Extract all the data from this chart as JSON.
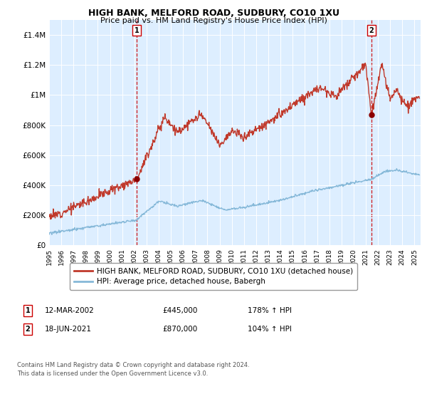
{
  "title1": "HIGH BANK, MELFORD ROAD, SUDBURY, CO10 1XU",
  "title2": "Price paid vs. HM Land Registry's House Price Index (HPI)",
  "xlim_start": 1995.0,
  "xlim_end": 2025.5,
  "ylim_min": 0,
  "ylim_max": 1500000,
  "yticks": [
    0,
    200000,
    400000,
    600000,
    800000,
    1000000,
    1200000,
    1400000
  ],
  "ytick_labels": [
    "£0",
    "£200K",
    "£400K",
    "£600K",
    "£800K",
    "£1M",
    "£1.2M",
    "£1.4M"
  ],
  "legend_line1": "HIGH BANK, MELFORD ROAD, SUDBURY, CO10 1XU (detached house)",
  "legend_line2": "HPI: Average price, detached house, Babergh",
  "sale1_date": "12-MAR-2002",
  "sale1_price": "£445,000",
  "sale1_hpi": "178% ↑ HPI",
  "sale1_x": 2002.2,
  "sale1_y": 445000,
  "sale2_date": "18-JUN-2021",
  "sale2_price": "£870,000",
  "sale2_hpi": "104% ↑ HPI",
  "sale2_x": 2021.46,
  "sale2_y": 870000,
  "red_color": "#c0392b",
  "blue_color": "#85b8d8",
  "bg_color": "#ddeeff",
  "footnote": "Contains HM Land Registry data © Crown copyright and database right 2024.\nThis data is licensed under the Open Government Licence v3.0."
}
